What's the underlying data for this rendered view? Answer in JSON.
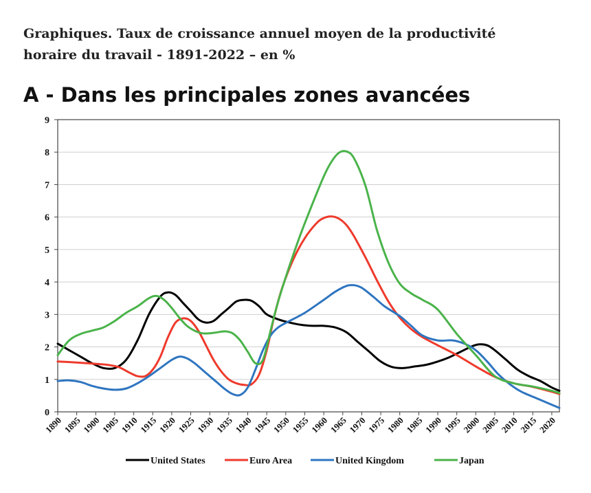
{
  "page": {
    "title_line1": "Graphiques. Taux de croissance annuel moyen de la productivité",
    "title_line2": "horaire du travail - 1891-2022 – en %"
  },
  "chart_data": {
    "type": "line",
    "title": "A - Dans les principales zones avancées",
    "xlabel": "",
    "ylabel": "",
    "xlim": [
      1890,
      2022
    ],
    "ylim": [
      0,
      9
    ],
    "yticks": [
      "0",
      "1",
      "2",
      "3",
      "4",
      "5",
      "6",
      "7",
      "8",
      "9"
    ],
    "xticks": [
      "1890",
      "1895",
      "1900",
      "1905",
      "1910",
      "1915",
      "1920",
      "1925",
      "1930",
      "1935",
      "1940",
      "1945",
      "1950",
      "1955",
      "1960",
      "1965",
      "1970",
      "1975",
      "1980",
      "1985",
      "1990",
      "1995",
      "2000",
      "2005",
      "2010",
      "2015",
      "2020"
    ],
    "grid": "horizontal",
    "legend_position": "bottom",
    "series": [
      {
        "name": "United States",
        "color": "#000000",
        "x": [
          1890,
          1893,
          1896,
          1899,
          1902,
          1905,
          1908,
          1911,
          1914,
          1917,
          1919,
          1921,
          1923,
          1925,
          1927,
          1929,
          1931,
          1933,
          1935,
          1937,
          1939,
          1941,
          1943,
          1945,
          1948,
          1951,
          1954,
          1957,
          1960,
          1963,
          1966,
          1969,
          1972,
          1975,
          1978,
          1981,
          1984,
          1987,
          1990,
          1993,
          1996,
          1999,
          2001,
          2003,
          2005,
          2008,
          2011,
          2014,
          2017,
          2020,
          2022
        ],
        "y": [
          2.1,
          1.9,
          1.7,
          1.5,
          1.35,
          1.35,
          1.6,
          2.2,
          3.0,
          3.55,
          3.68,
          3.6,
          3.35,
          3.1,
          2.85,
          2.75,
          2.8,
          3.0,
          3.2,
          3.4,
          3.45,
          3.42,
          3.25,
          3.0,
          2.85,
          2.75,
          2.68,
          2.65,
          2.65,
          2.6,
          2.45,
          2.15,
          1.85,
          1.55,
          1.38,
          1.35,
          1.4,
          1.45,
          1.55,
          1.68,
          1.85,
          2.02,
          2.08,
          2.05,
          1.9,
          1.6,
          1.3,
          1.1,
          0.95,
          0.75,
          0.65
        ]
      },
      {
        "name": "Euro Area",
        "color": "#ee3a2c",
        "x": [
          1890,
          1895,
          1900,
          1903,
          1906,
          1909,
          1911,
          1913,
          1915,
          1917,
          1919,
          1921,
          1923,
          1925,
          1927,
          1929,
          1931,
          1933,
          1935,
          1937,
          1939,
          1941,
          1943,
          1945,
          1947,
          1949,
          1952,
          1955,
          1958,
          1960,
          1962,
          1964,
          1966,
          1968,
          1971,
          1974,
          1977,
          1980,
          1983,
          1986,
          1990,
          1995,
          2000,
          2005,
          2010,
          2015,
          2020,
          2022
        ],
        "y": [
          1.55,
          1.52,
          1.48,
          1.45,
          1.38,
          1.2,
          1.1,
          1.1,
          1.3,
          1.7,
          2.3,
          2.75,
          2.88,
          2.8,
          2.5,
          2.05,
          1.6,
          1.25,
          1.0,
          0.88,
          0.83,
          0.85,
          1.15,
          1.9,
          2.95,
          3.8,
          4.7,
          5.35,
          5.8,
          5.97,
          6.02,
          5.95,
          5.75,
          5.4,
          4.75,
          4.05,
          3.4,
          2.9,
          2.55,
          2.3,
          2.05,
          1.75,
          1.4,
          1.08,
          0.88,
          0.77,
          0.62,
          0.55
        ]
      },
      {
        "name": "United Kingdom",
        "color": "#2e75c0",
        "x": [
          1890,
          1893,
          1896,
          1899,
          1902,
          1905,
          1908,
          1911,
          1914,
          1917,
          1920,
          1922,
          1924,
          1926,
          1928,
          1930,
          1932,
          1934,
          1936,
          1938,
          1940,
          1942,
          1944,
          1946,
          1948,
          1951,
          1955,
          1960,
          1963,
          1966,
          1968,
          1970,
          1973,
          1976,
          1980,
          1983,
          1986,
          1990,
          1994,
          1997,
          2000,
          2003,
          2006,
          2009,
          2012,
          2016,
          2020,
          2022
        ],
        "y": [
          0.95,
          0.97,
          0.92,
          0.8,
          0.72,
          0.68,
          0.72,
          0.88,
          1.1,
          1.35,
          1.6,
          1.7,
          1.65,
          1.5,
          1.3,
          1.1,
          0.9,
          0.7,
          0.55,
          0.52,
          0.75,
          1.3,
          1.9,
          2.35,
          2.6,
          2.8,
          3.05,
          3.45,
          3.7,
          3.88,
          3.9,
          3.82,
          3.55,
          3.25,
          2.95,
          2.65,
          2.35,
          2.2,
          2.2,
          2.1,
          1.9,
          1.55,
          1.15,
          0.85,
          0.62,
          0.42,
          0.22,
          0.12
        ]
      },
      {
        "name": "Japan",
        "color": "#4ab34a",
        "x": [
          1890,
          1893,
          1896,
          1899,
          1902,
          1905,
          1908,
          1911,
          1914,
          1916,
          1918,
          1920,
          1922,
          1924,
          1926,
          1928,
          1930,
          1932,
          1934,
          1936,
          1938,
          1940,
          1942,
          1944,
          1946,
          1948,
          1951,
          1954,
          1957,
          1960,
          1962,
          1964,
          1966,
          1968,
          1971,
          1974,
          1977,
          1980,
          1983,
          1986,
          1990,
          1995,
          2000,
          2005,
          2010,
          2015,
          2020,
          2022
        ],
        "y": [
          1.75,
          2.2,
          2.4,
          2.5,
          2.6,
          2.8,
          3.05,
          3.25,
          3.5,
          3.57,
          3.45,
          3.2,
          2.9,
          2.65,
          2.5,
          2.42,
          2.42,
          2.45,
          2.48,
          2.42,
          2.2,
          1.85,
          1.5,
          1.6,
          2.5,
          3.4,
          4.5,
          5.5,
          6.4,
          7.25,
          7.7,
          7.98,
          8.02,
          7.8,
          6.95,
          5.6,
          4.6,
          3.95,
          3.65,
          3.45,
          3.15,
          2.4,
          1.75,
          1.1,
          0.88,
          0.78,
          0.65,
          0.58
        ]
      }
    ]
  }
}
